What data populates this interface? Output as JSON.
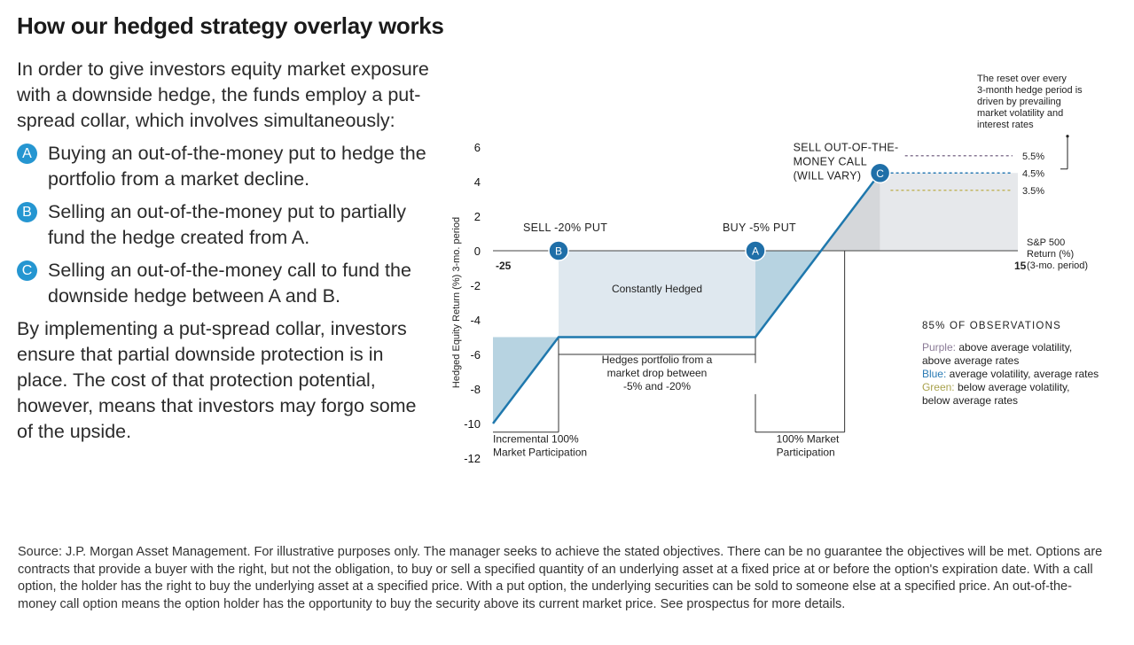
{
  "page": {
    "title": "How our hedged strategy overlay works",
    "intro": "In order to give investors equity market exposure with a downside hedge, the funds employ a put-spread collar, which involves simultaneously:",
    "options": [
      {
        "letter": "A",
        "text": "Buying an out-of-the-money put to hedge the portfolio from a market decline."
      },
      {
        "letter": "B",
        "text": "Selling an out-of-the-money put to partially fund the hedge created from A."
      },
      {
        "letter": "C",
        "text": "Selling an out-of-the-money call to fund the downside hedge between A and B."
      }
    ],
    "conclusion": "By implementing a put-spread collar, investors ensure that partial downside protection is in place. The cost of that protection potential, however, means that investors may forgo some of the upside.",
    "source": "Source: J.P. Morgan Asset Management. For illustrative purposes only. The manager seeks to achieve the stated objectives. There can be no guarantee the objectives will be met. Options are contracts that provide a buyer with the right, but not the obligation, to buy or sell a specified quantity of an underlying asset at a fixed price at or before the option's expiration date. With a call option, the holder has the right to buy the underlying asset at a specified price. With a put option, the underlying securities can be sold to someone else at a specified price. An out-of-the-money call option means the option holder has the opportunity to buy the security above its current market price. See prospectus for more details."
  },
  "chart_data": {
    "type": "line",
    "ylabel": "Hedged Equity Return (%) 3-mo. period",
    "xlabel_lines": [
      "S&P 500",
      "Return (%)",
      "(3-mo. period)"
    ],
    "xlim": [
      -25,
      15
    ],
    "ylim": [
      -12,
      6
    ],
    "x_tick_labels": [
      {
        "x": -25,
        "label": "-25"
      },
      {
        "x": 15,
        "label": "15"
      }
    ],
    "y_ticks": [
      6,
      4,
      2,
      0,
      -2,
      -4,
      -6,
      -8,
      -10,
      -12
    ],
    "series": [
      {
        "points": [
          [
            -25,
            -10
          ],
          [
            -20,
            -5
          ],
          [
            -5,
            -5
          ],
          [
            0,
            0
          ],
          [
            4.5,
            4.5
          ]
        ]
      }
    ],
    "markers": [
      {
        "letter": "B",
        "x": -20,
        "y": 0,
        "label": "SELL -20% PUT"
      },
      {
        "letter": "A",
        "x": -5,
        "y": 0,
        "label": "BUY -5% PUT"
      },
      {
        "letter": "C",
        "x": 4.5,
        "y": 4.5,
        "label_lines": [
          "SELL OUT-OF-THE-",
          "MONEY CALL",
          "(WILL VARY)"
        ]
      }
    ],
    "cap_levels": [
      {
        "y": 5.5,
        "label": "5.5%",
        "color": "#8a7a96"
      },
      {
        "y": 4.5,
        "label": "4.5%",
        "color": "#2a7bb5"
      },
      {
        "y": 3.5,
        "label": "3.5%",
        "color": "#c3b662"
      }
    ],
    "reset_note_lines": [
      "The reset over every",
      "3-month hedge period is",
      "driven by prevailing",
      "market volatility and",
      "interest rates"
    ],
    "region_labels": {
      "constantly_hedged": "Constantly Hedged",
      "hedges_portfolio": [
        "Hedges portfolio from a",
        "market drop between",
        "-5% and -20%"
      ],
      "incremental": [
        "Incremental 100%",
        "Market Participation"
      ],
      "full_participation": [
        "100% Market",
        "Participation"
      ]
    },
    "observations": {
      "heading": "85% OF OBSERVATIONS",
      "items": [
        {
          "key": "Purple:",
          "color": "#8a7a96",
          "lines": [
            " above average volatility,",
            "above average rates"
          ]
        },
        {
          "key": "Blue:",
          "color": "#2a7bb5",
          "lines": [
            " average volatility, average rates"
          ]
        },
        {
          "key": "Green:",
          "color": "#a9a24d",
          "lines": [
            " below average volatility,",
            "below average rates"
          ]
        }
      ]
    },
    "colors": {
      "line": "#1f78ad",
      "badge": "#2596d1",
      "hedge_fill": "#dfe8ef",
      "loss_fill": "#b7d3e1",
      "upside_fill": "#e6e8eb",
      "upside_dark": "#d5d7da"
    }
  }
}
